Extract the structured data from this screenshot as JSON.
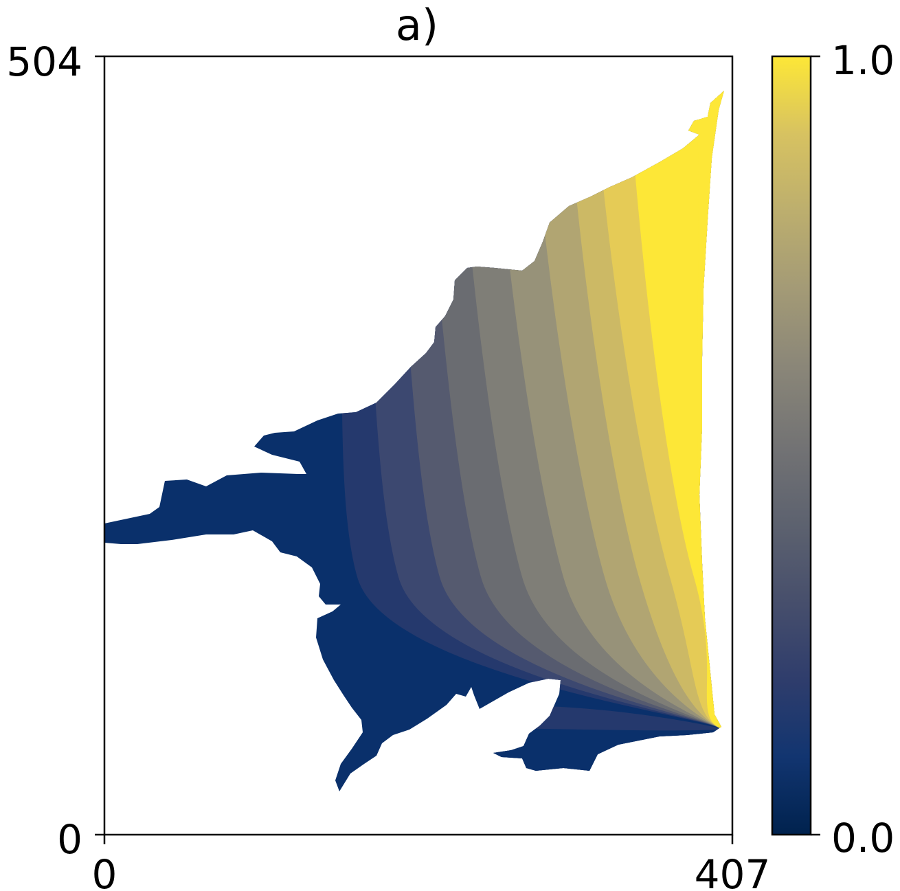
{
  "chart_data": {
    "type": "heatmap",
    "title": "a)",
    "xlabel": "",
    "ylabel": "",
    "xlim": [
      0,
      407
    ],
    "ylim": [
      0,
      504
    ],
    "x_ticks": [
      "0",
      "407"
    ],
    "y_ticks": [
      "0",
      "504"
    ],
    "colorbar": {
      "colormap": "cividis",
      "range": [
        0.0,
        1.0
      ],
      "tick_labels": [
        "0.0",
        "1.0"
      ],
      "levels": 11,
      "colors": [
        "#00224e",
        "#0a306b",
        "#25396d",
        "#3c4870",
        "#555a6f",
        "#6a6c71",
        "#7f7e77",
        "#979279",
        "#b1a572",
        "#ccb965",
        "#e5cb56",
        "#fde737"
      ]
    },
    "region": "masked domain with 11 contour bands, value increases west to east toward 1.0 near x=407, converging to a point near x=400, y=68"
  }
}
